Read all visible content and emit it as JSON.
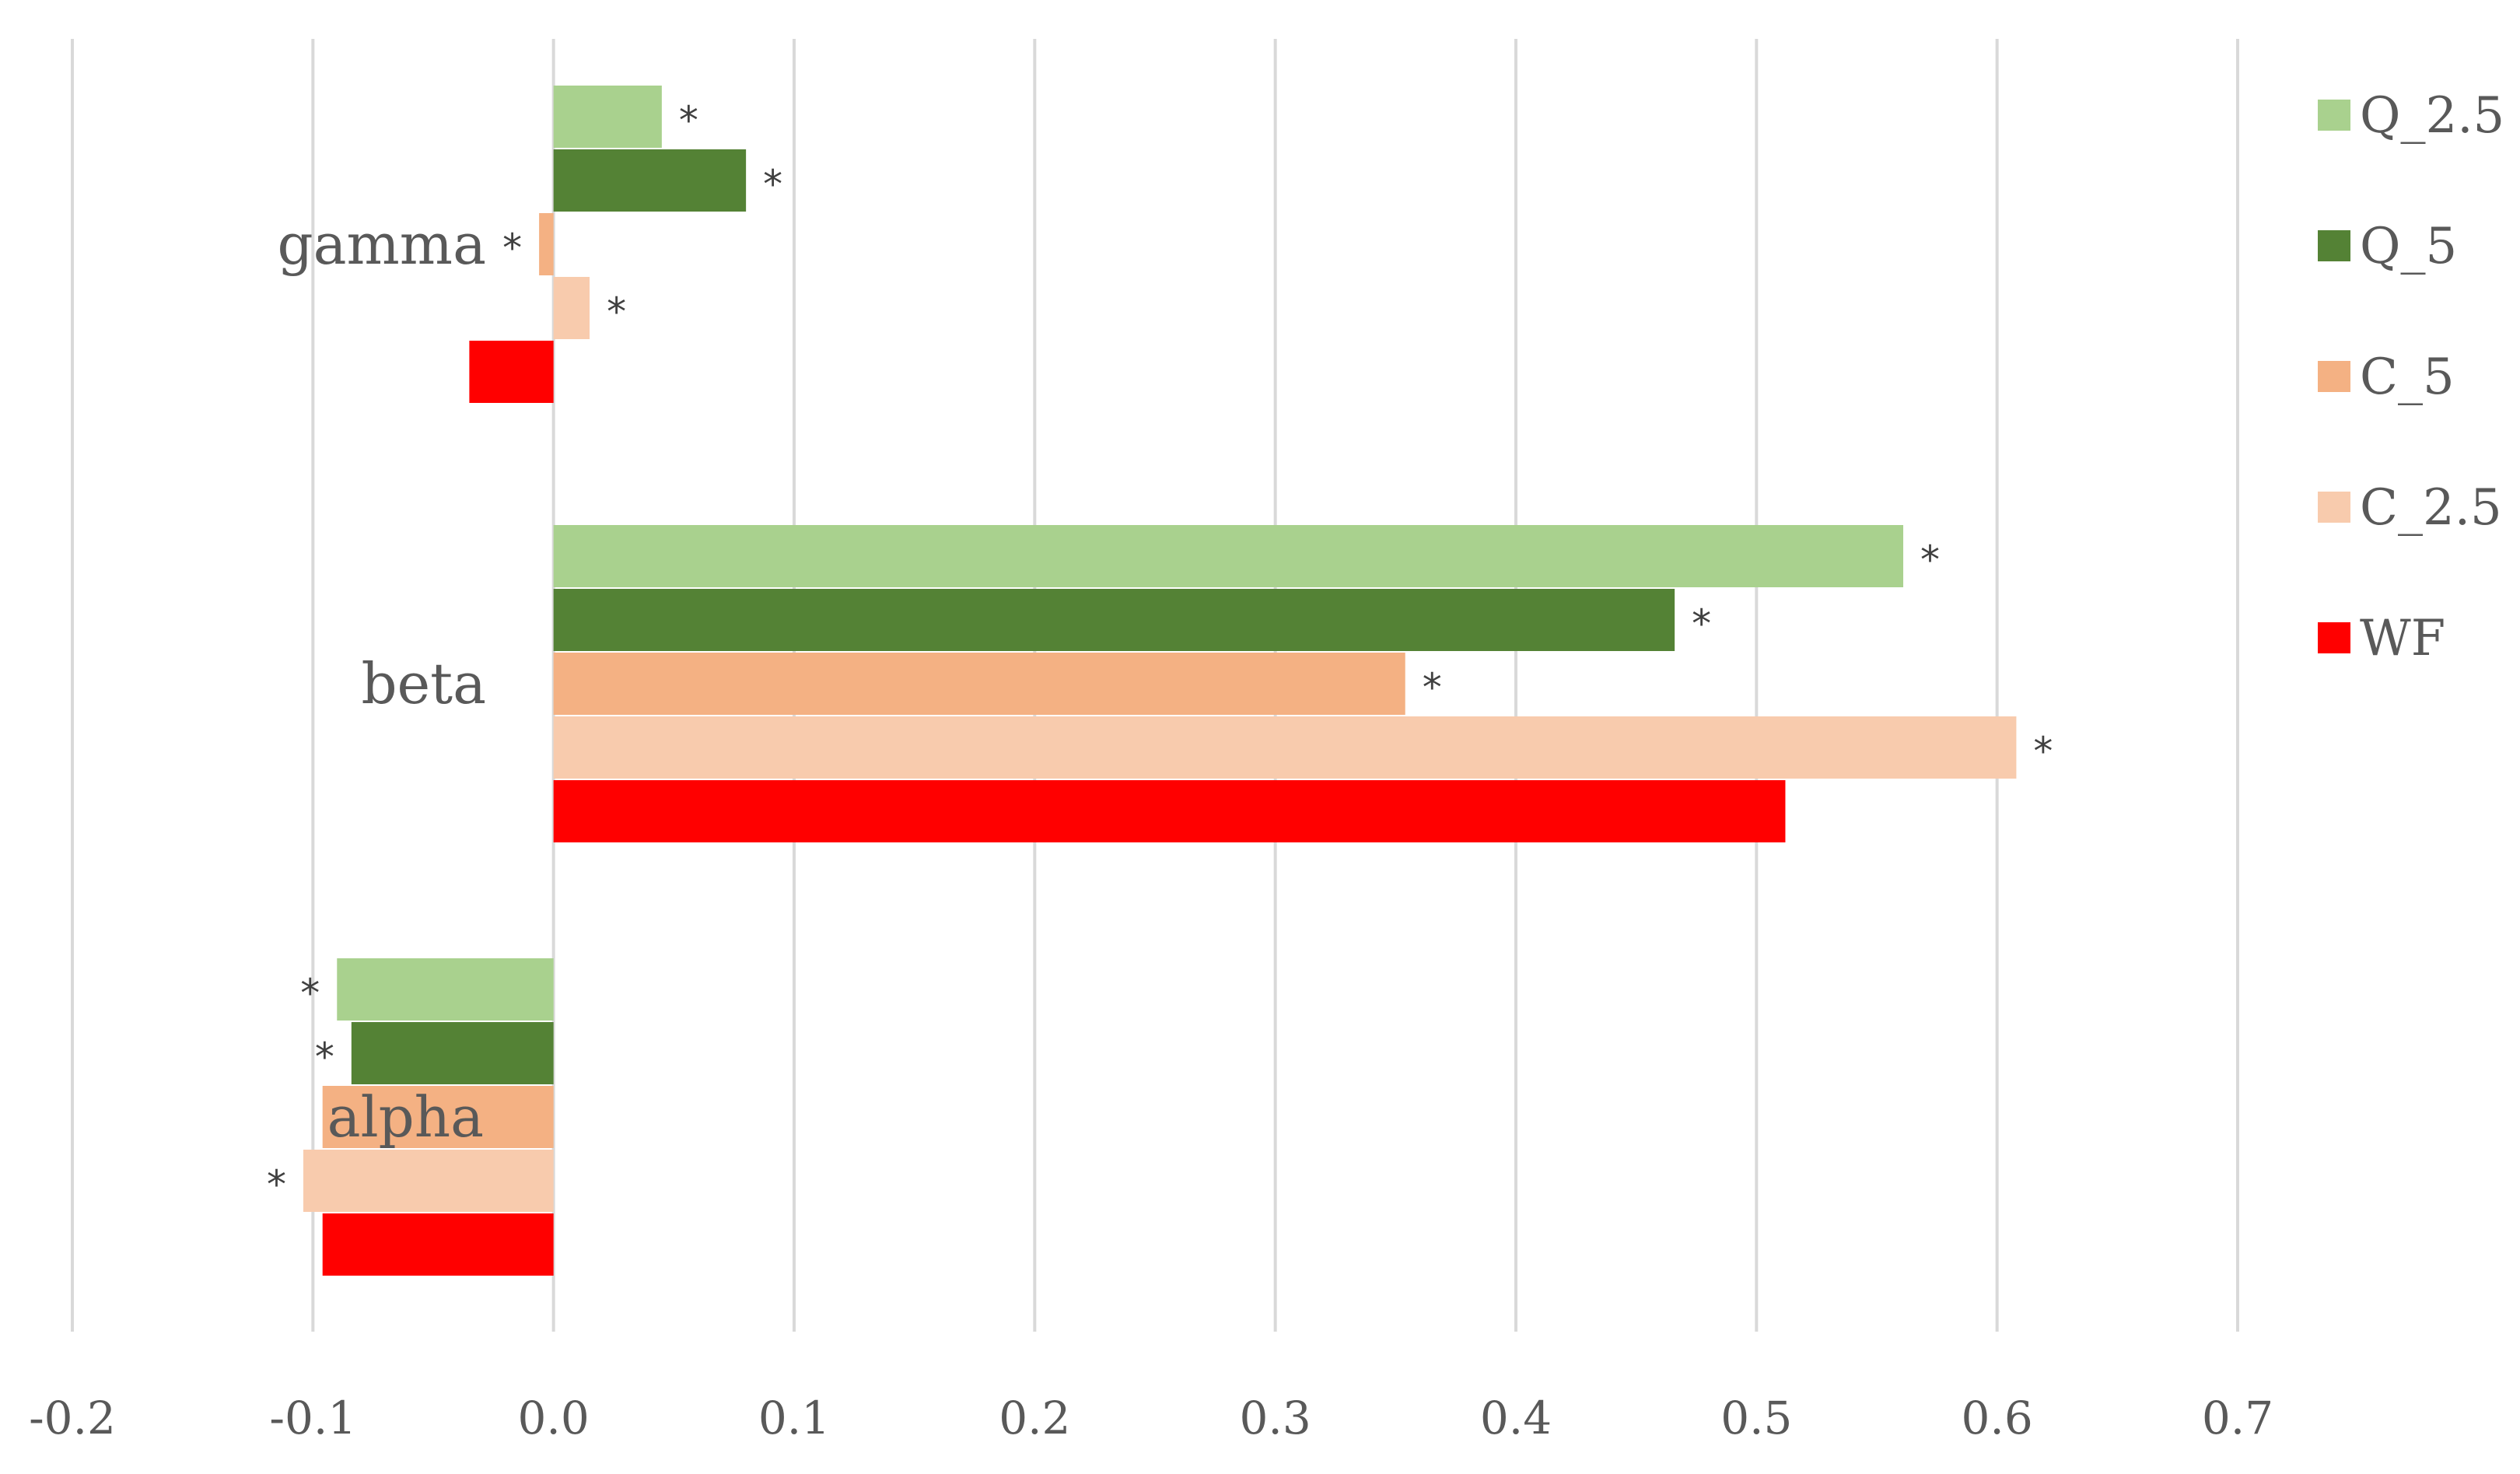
{
  "chart_data": {
    "type": "bar",
    "orientation": "horizontal",
    "title": "",
    "xlabel": "",
    "ylabel": "",
    "xlim": [
      -0.2,
      0.7
    ],
    "x_ticks": [
      "-0.2",
      "-0.1",
      "0.0",
      "0.1",
      "0.2",
      "0.3",
      "0.4",
      "0.5",
      "0.6",
      "0.7"
    ],
    "x_tick_values": [
      -0.2,
      -0.1,
      0.0,
      0.1,
      0.2,
      0.3,
      0.4,
      0.5,
      0.6,
      0.7
    ],
    "grid": "vertical",
    "legend_position": "right",
    "categories": [
      "gamma",
      "beta",
      "alpha"
    ],
    "series": [
      {
        "name": "Q_2.5",
        "color": "#a9d18e",
        "values": [
          0.045,
          0.561,
          -0.09
        ],
        "significant": [
          true,
          true,
          true
        ]
      },
      {
        "name": "Q_5",
        "color": "#548235",
        "values": [
          0.08,
          0.466,
          -0.084
        ],
        "significant": [
          true,
          true,
          true
        ]
      },
      {
        "name": "C_5",
        "color": "#f4b183",
        "values": [
          -0.006,
          0.354,
          -0.096
        ],
        "significant": [
          true,
          true,
          false
        ]
      },
      {
        "name": "C_2.5",
        "color": "#f8cbad",
        "values": [
          0.015,
          0.608,
          -0.104
        ],
        "significant": [
          true,
          true,
          true
        ]
      },
      {
        "name": "WF",
        "color": "#ff0000",
        "values": [
          -0.035,
          0.512,
          -0.096
        ],
        "significant": [
          false,
          false,
          false
        ]
      }
    ],
    "significance_marker": "*"
  }
}
